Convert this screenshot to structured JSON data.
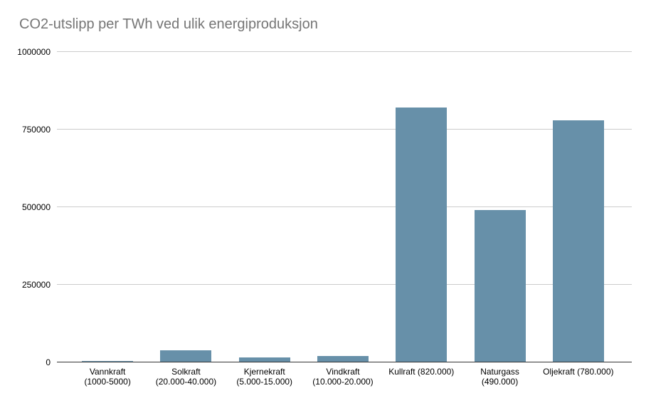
{
  "chart": {
    "title": "CO2-utslipp per TWh ved ulik energiproduksjon",
    "title_color": "#757575",
    "bar_color": "#6790a9",
    "gridline_color": "#cccccc",
    "axis_line_color": "#333333",
    "label_color": "#000000",
    "background_color": "#ffffff"
  },
  "chart_data": {
    "type": "bar",
    "title": "CO2-utslipp per TWh ved ulik energiproduksjon",
    "categories": [
      "Vannkraft (1000-5000)",
      "Solkraft (20.000-40.000)",
      "Kjernekraft (5.000-15.000)",
      "Vindkraft (10.000-20.000)",
      "Kullraft (820.000)",
      "Naturgass (490.000)",
      "Oljekraft (780.000)"
    ],
    "category_label_lines": [
      [
        "Vannkraft",
        "(1000-5000)"
      ],
      [
        "Solkraft",
        "(20.000-40.000)"
      ],
      [
        "Kjernekraft",
        "(5.000-15.000)"
      ],
      [
        "Vindkraft",
        "(10.000-20.000)"
      ],
      [
        "Kullraft (820.000)"
      ],
      [
        "Naturgass",
        "(490.000)"
      ],
      [
        "Oljekraft (780.000)"
      ]
    ],
    "values": [
      5000,
      40000,
      15000,
      20000,
      820000,
      490000,
      780000
    ],
    "xlabel": "",
    "ylabel": "",
    "ylim": [
      0,
      1000000
    ],
    "yticks": [
      0,
      250000,
      500000,
      750000,
      1000000
    ],
    "ytick_labels": [
      "0",
      "250000",
      "500000",
      "750000",
      "1000000"
    ],
    "grid": true,
    "legend": "none"
  }
}
